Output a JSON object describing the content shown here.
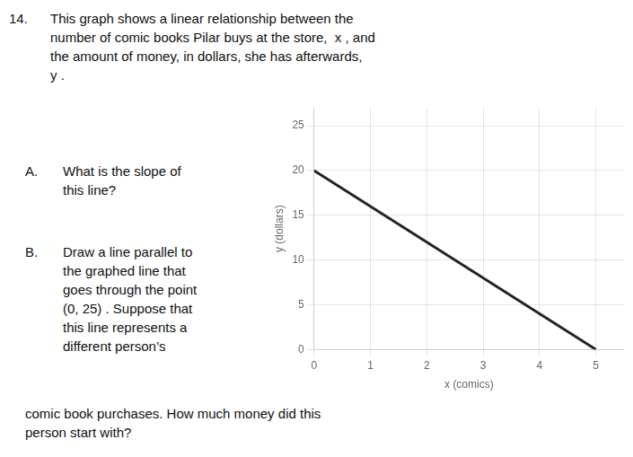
{
  "chart_data": {
    "type": "line",
    "x": [
      0,
      5
    ],
    "values": [
      20,
      0
    ],
    "color": "#222222",
    "xlim": [
      0,
      5.5
    ],
    "ylim": [
      0,
      27
    ],
    "xticks": [
      0,
      1,
      2,
      3,
      4,
      5
    ],
    "yticks": [
      0,
      5,
      10,
      15,
      20,
      25
    ],
    "xlabel": "x (comics)",
    "ylabel": "y (dollars)",
    "grid": true,
    "annotations": [
      "14.",
      "This graph shows a linear relationship between the\nnumber of comic books Pilar buys at the store,  x , and\nthe amount of money, in dollars, she has afterwards,\ny .",
      "A.",
      "What is the slope of\nthis line?",
      "B.",
      "Draw a line parallel to\nthe graphed line that\ngoes through the point\n(0, 25) . Suppose that\nthis line represents a\ndifferent person’s",
      "comic book purchases. How much money did this\nperson start with?"
    ]
  }
}
